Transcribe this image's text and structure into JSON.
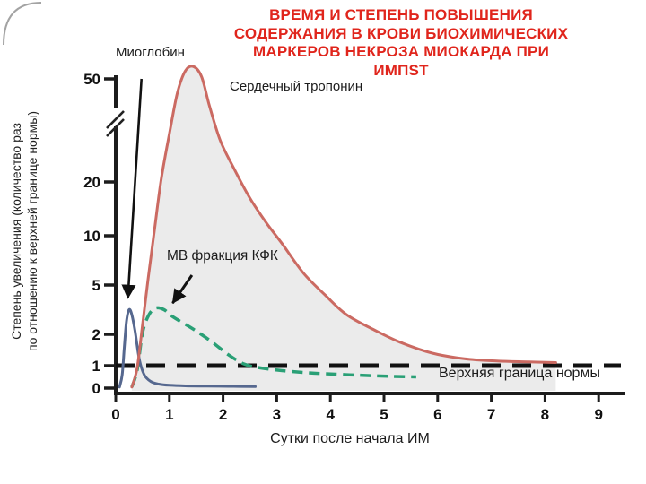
{
  "title": {
    "lines": [
      "ВРЕМЯ И СТЕПЕНЬ ПОВЫШЕНИЯ",
      "СОДЕРЖАНИЯ В КРОВИ БИОХИМИЧЕСКИХ",
      "МАРКЕРОВ НЕКРОЗА МИОКАРДА ПРИ",
      "ИМПST"
    ],
    "color": "#e0251c"
  },
  "chart_data": {
    "type": "line",
    "xlabel": "Сутки после начала ИМ",
    "ylabel_line1": "Степень увеличения (количество раз",
    "ylabel_line2": "по отношению к верхней границе нормы)",
    "x_ticks": [
      0,
      1,
      2,
      3,
      4,
      5,
      6,
      7,
      8,
      9
    ],
    "y_ticks": [
      0,
      1,
      2,
      5,
      10,
      20,
      50
    ],
    "y_axis_break": true,
    "x_range": [
      0,
      9
    ],
    "normal_limit_line": {
      "value": 1,
      "label": "Верхняя граница нормы",
      "style": "dashed",
      "color": "#111111"
    },
    "series": [
      {
        "name": "Миоглобин",
        "color": "#56688f",
        "style": "solid",
        "points": [
          [
            0.07,
            0.05
          ],
          [
            0.12,
            0.6
          ],
          [
            0.16,
            1.6
          ],
          [
            0.2,
            2.8
          ],
          [
            0.25,
            3.5
          ],
          [
            0.3,
            3.2
          ],
          [
            0.36,
            2.2
          ],
          [
            0.44,
            1.2
          ],
          [
            0.53,
            0.6
          ],
          [
            0.65,
            0.3
          ],
          [
            0.8,
            0.18
          ],
          [
            1.0,
            0.13
          ],
          [
            1.3,
            0.1
          ],
          [
            1.7,
            0.09
          ],
          [
            2.2,
            0.08
          ],
          [
            2.6,
            0.07
          ]
        ]
      },
      {
        "name": "Сердечный тропонин",
        "color": "#cb6a62",
        "style": "solid",
        "fill": "#ebebeb",
        "points": [
          [
            0.3,
            0.05
          ],
          [
            0.4,
            0.9
          ],
          [
            0.5,
            2.6
          ],
          [
            0.6,
            5.5
          ],
          [
            0.72,
            11
          ],
          [
            0.85,
            21
          ],
          [
            1.0,
            34
          ],
          [
            1.15,
            46
          ],
          [
            1.3,
            54
          ],
          [
            1.45,
            56
          ],
          [
            1.6,
            51
          ],
          [
            1.75,
            42
          ],
          [
            1.95,
            32
          ],
          [
            2.2,
            24
          ],
          [
            2.5,
            17
          ],
          [
            2.8,
            12.5
          ],
          [
            3.1,
            9.2
          ],
          [
            3.5,
            6.2
          ],
          [
            3.9,
            4.4
          ],
          [
            4.3,
            3.2
          ],
          [
            4.8,
            2.3
          ],
          [
            5.3,
            1.75
          ],
          [
            5.9,
            1.4
          ],
          [
            6.5,
            1.22
          ],
          [
            7.1,
            1.15
          ],
          [
            7.7,
            1.12
          ],
          [
            8.2,
            1.1
          ]
        ]
      },
      {
        "name": "МВ фракция КФК",
        "color": "#2aa076",
        "style": "dashed",
        "points": [
          [
            0.3,
            0.05
          ],
          [
            0.4,
            0.8
          ],
          [
            0.5,
            2.1
          ],
          [
            0.62,
            3.2
          ],
          [
            0.75,
            3.6
          ],
          [
            0.9,
            3.5
          ],
          [
            1.05,
            3.1
          ],
          [
            1.25,
            2.7
          ],
          [
            1.5,
            2.2
          ],
          [
            1.8,
            1.75
          ],
          [
            2.1,
            1.35
          ],
          [
            2.4,
            1.05
          ],
          [
            2.7,
            0.9
          ],
          [
            3.1,
            0.78
          ],
          [
            3.6,
            0.68
          ],
          [
            4.1,
            0.62
          ],
          [
            4.6,
            0.57
          ],
          [
            5.1,
            0.53
          ],
          [
            5.6,
            0.5
          ]
        ]
      }
    ],
    "annotations": {
      "myoglobin_arrow": {
        "from": [
          0.48,
          50
        ],
        "to": [
          0.225,
          4.2
        ]
      },
      "mb_ck_arrow": {
        "from": [
          1.42,
          6.0
        ],
        "to": [
          1.06,
          3.9
        ]
      }
    }
  }
}
